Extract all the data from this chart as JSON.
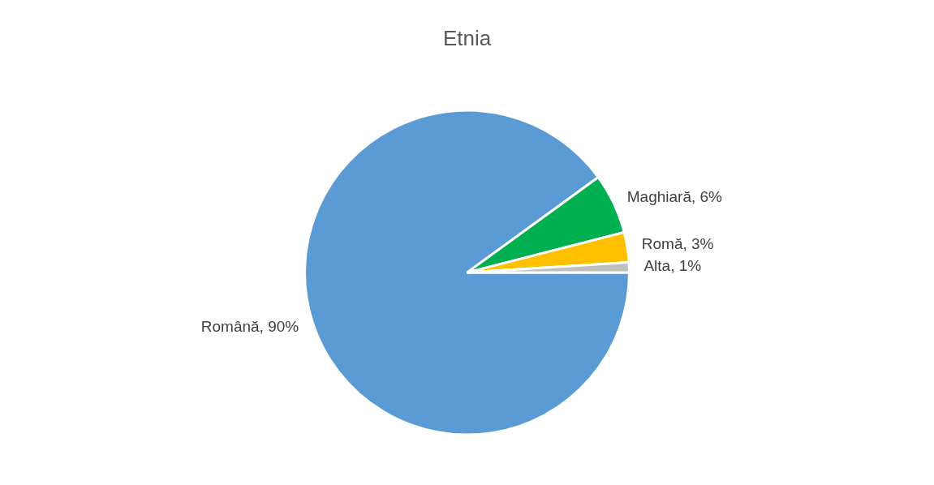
{
  "chart_data": {
    "type": "pie",
    "title": "Etnia",
    "categories": [
      "Română",
      "Maghiară",
      "Romă",
      "Alta"
    ],
    "values": [
      90,
      6,
      3,
      1
    ],
    "colors": [
      "#5b9bd5",
      "#00b050",
      "#ffc000",
      "#bfbfbf"
    ],
    "value_labels": [
      "90%",
      "6%",
      "3%",
      "1%"
    ],
    "legend": false
  }
}
